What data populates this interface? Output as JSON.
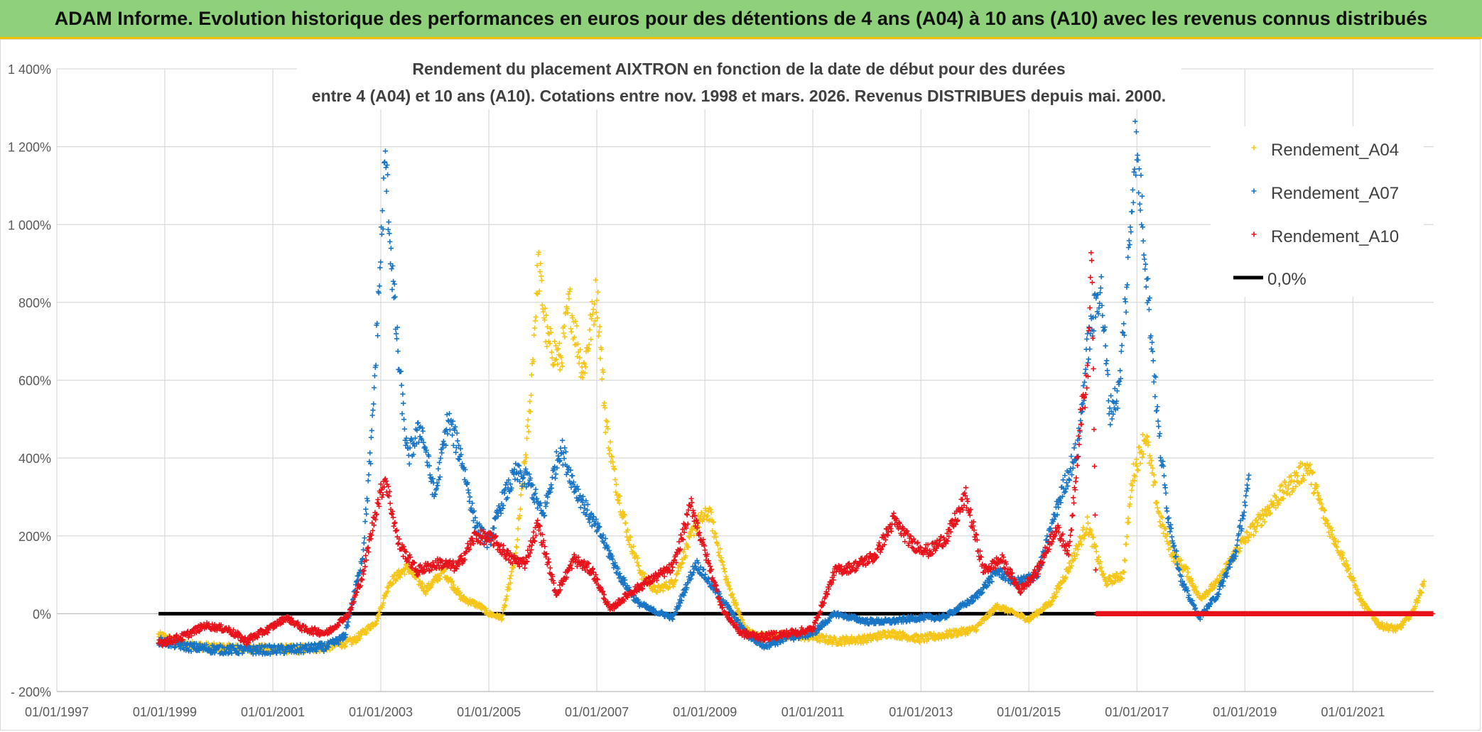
{
  "banner": {
    "title": "ADAM Informe. Evolution historique des performances en euros pour des détentions de 4 ans (A04) à 10 ans (A10) avec les revenus connus distribués"
  },
  "chart_data": {
    "type": "scatter",
    "title_line1": "Rendement du placement AIXTRON en fonction de la date de début pour des durées",
    "title_line2": "entre 4 (A04) et 10 ans (A10). Cotations entre nov. 1998 et mars. 2026. Revenus DISTRIBUES depuis mai. 2000.",
    "xlabel": "",
    "ylabel": "",
    "x_range": [
      "01/01/1997",
      "01/07/2022"
    ],
    "ylim": [
      -200,
      1400
    ],
    "y_ticks": [
      -200,
      0,
      200,
      400,
      600,
      800,
      1000,
      1200,
      1400
    ],
    "y_tick_labels": [
      "- 200%",
      "0%",
      "200%",
      "400%",
      "600%",
      "800%",
      "1 000%",
      "1 200%",
      "1 400%"
    ],
    "x_ticks": [
      "01/01/1997",
      "01/01/1999",
      "01/01/2001",
      "01/01/2003",
      "01/01/2005",
      "01/01/2007",
      "01/01/2009",
      "01/01/2011",
      "01/01/2013",
      "01/01/2015",
      "01/01/2017",
      "01/01/2019",
      "01/01/2021"
    ],
    "grid": true,
    "legend_position": "top-right",
    "series": [
      {
        "name": "Rendement_A04",
        "color": "#f5c518",
        "marker": "plus",
        "points": [
          [
            "1998-11-20",
            -55
          ],
          [
            "1999-06-01",
            -80
          ],
          [
            "2000-01-01",
            -88
          ],
          [
            "2000-09-01",
            -90
          ],
          [
            "2001-06-01",
            -92
          ],
          [
            "2002-01-01",
            -85
          ],
          [
            "2002-07-01",
            -70
          ],
          [
            "2002-12-01",
            -20
          ],
          [
            "2003-03-01",
            80
          ],
          [
            "2003-07-01",
            120
          ],
          [
            "2003-11-01",
            60
          ],
          [
            "2004-03-01",
            110
          ],
          [
            "2004-07-01",
            40
          ],
          [
            "2004-11-01",
            20
          ],
          [
            "2005-01-01",
            0
          ],
          [
            "2005-04-01",
            -10
          ],
          [
            "2005-07-01",
            150
          ],
          [
            "2005-10-01",
            500
          ],
          [
            "2005-12-01",
            900
          ],
          [
            "2006-02-01",
            700
          ],
          [
            "2006-05-01",
            650
          ],
          [
            "2006-07-01",
            800
          ],
          [
            "2006-10-01",
            620
          ],
          [
            "2007-01-01",
            830
          ],
          [
            "2007-03-01",
            500
          ],
          [
            "2007-05-01",
            350
          ],
          [
            "2007-08-01",
            200
          ],
          [
            "2007-11-01",
            100
          ],
          [
            "2008-02-01",
            60
          ],
          [
            "2008-06-01",
            80
          ],
          [
            "2008-11-01",
            230
          ],
          [
            "2009-02-01",
            260
          ],
          [
            "2009-06-01",
            80
          ],
          [
            "2009-10-01",
            -40
          ],
          [
            "2010-01-01",
            -60
          ],
          [
            "2010-06-01",
            -55
          ],
          [
            "2011-01-01",
            -60
          ],
          [
            "2011-06-01",
            -70
          ],
          [
            "2012-01-01",
            -65
          ],
          [
            "2012-06-01",
            -50
          ],
          [
            "2013-01-01",
            -65
          ],
          [
            "2013-06-01",
            -55
          ],
          [
            "2014-01-01",
            -40
          ],
          [
            "2014-06-01",
            20
          ],
          [
            "2015-01-01",
            -15
          ],
          [
            "2015-06-01",
            30
          ],
          [
            "2015-10-01",
            120
          ],
          [
            "2016-02-01",
            230
          ],
          [
            "2016-06-01",
            80
          ],
          [
            "2016-10-01",
            100
          ],
          [
            "2016-12-01",
            350
          ],
          [
            "2017-03-01",
            460
          ],
          [
            "2017-06-01",
            250
          ],
          [
            "2017-09-01",
            150
          ],
          [
            "2017-12-01",
            110
          ],
          [
            "2018-03-01",
            40
          ],
          [
            "2018-07-01",
            80
          ],
          [
            "2018-11-01",
            160
          ],
          [
            "2019-03-01",
            220
          ],
          [
            "2019-07-01",
            280
          ],
          [
            "2019-11-01",
            330
          ],
          [
            "2020-03-01",
            380
          ],
          [
            "2020-07-01",
            240
          ],
          [
            "2020-11-01",
            140
          ],
          [
            "2021-03-01",
            30
          ],
          [
            "2021-07-01",
            -30
          ],
          [
            "2021-11-01",
            -40
          ],
          [
            "2022-02-01",
            0
          ],
          [
            "2022-05-01",
            80
          ]
        ]
      },
      {
        "name": "Rendement_A07",
        "color": "#1874c4",
        "marker": "plus",
        "points": [
          [
            "1998-11-20",
            -70
          ],
          [
            "1999-06-01",
            -85
          ],
          [
            "2000-01-01",
            -92
          ],
          [
            "2000-09-01",
            -93
          ],
          [
            "2001-06-01",
            -92
          ],
          [
            "2002-01-01",
            -85
          ],
          [
            "2002-05-01",
            -60
          ],
          [
            "2002-09-01",
            150
          ],
          [
            "2002-11-01",
            450
          ],
          [
            "2003-02-01",
            1170
          ],
          [
            "2003-03-15",
            900
          ],
          [
            "2003-05-01",
            650
          ],
          [
            "2003-07-01",
            400
          ],
          [
            "2003-10-01",
            480
          ],
          [
            "2004-01-01",
            300
          ],
          [
            "2004-04-01",
            500
          ],
          [
            "2004-07-01",
            400
          ],
          [
            "2004-10-01",
            230
          ],
          [
            "2005-01-01",
            180
          ],
          [
            "2005-04-01",
            290
          ],
          [
            "2005-07-01",
            360
          ],
          [
            "2005-10-01",
            340
          ],
          [
            "2006-01-01",
            250
          ],
          [
            "2006-05-01",
            430
          ],
          [
            "2006-08-01",
            330
          ],
          [
            "2006-11-01",
            260
          ],
          [
            "2007-02-01",
            200
          ],
          [
            "2007-06-01",
            100
          ],
          [
            "2007-10-01",
            30
          ],
          [
            "2008-01-01",
            10
          ],
          [
            "2008-06-01",
            -10
          ],
          [
            "2008-11-01",
            130
          ],
          [
            "2009-02-01",
            80
          ],
          [
            "2009-06-01",
            20
          ],
          [
            "2009-10-01",
            -50
          ],
          [
            "2010-02-01",
            -80
          ],
          [
            "2010-08-01",
            -60
          ],
          [
            "2011-01-01",
            -50
          ],
          [
            "2011-06-01",
            0
          ],
          [
            "2012-01-01",
            -20
          ],
          [
            "2012-06-01",
            -20
          ],
          [
            "2013-01-01",
            -10
          ],
          [
            "2013-06-01",
            -10
          ],
          [
            "2014-01-01",
            40
          ],
          [
            "2014-06-01",
            110
          ],
          [
            "2014-10-01",
            80
          ],
          [
            "2015-03-01",
            100
          ],
          [
            "2015-08-01",
            300
          ],
          [
            "2015-12-01",
            430
          ],
          [
            "2016-02-01",
            680
          ],
          [
            "2016-05-01",
            850
          ],
          [
            "2016-07-01",
            520
          ],
          [
            "2016-09-01",
            570
          ],
          [
            "2016-11-01",
            880
          ],
          [
            "2016-12-20",
            1210
          ],
          [
            "2017-02-01",
            1050
          ],
          [
            "2017-04-01",
            750
          ],
          [
            "2017-06-01",
            450
          ],
          [
            "2017-08-01",
            250
          ],
          [
            "2017-11-01",
            80
          ],
          [
            "2018-03-01",
            -10
          ],
          [
            "2018-07-01",
            50
          ],
          [
            "2018-11-01",
            160
          ],
          [
            "2019-02-01",
            340
          ]
        ]
      },
      {
        "name": "Rendement_A10",
        "color": "#e8121a",
        "marker": "plus",
        "points": [
          [
            "1998-11-20",
            -75
          ],
          [
            "1999-05-01",
            -60
          ],
          [
            "1999-10-01",
            -30
          ],
          [
            "2000-03-01",
            -40
          ],
          [
            "2000-07-01",
            -70
          ],
          [
            "2000-12-01",
            -40
          ],
          [
            "2001-04-01",
            -10
          ],
          [
            "2001-08-01",
            -40
          ],
          [
            "2002-01-01",
            -50
          ],
          [
            "2002-06-01",
            0
          ],
          [
            "2002-09-01",
            100
          ],
          [
            "2002-12-01",
            270
          ],
          [
            "2003-02-01",
            350
          ],
          [
            "2003-05-01",
            180
          ],
          [
            "2003-09-01",
            110
          ],
          [
            "2004-02-01",
            130
          ],
          [
            "2004-06-01",
            120
          ],
          [
            "2004-10-01",
            200
          ],
          [
            "2005-02-01",
            190
          ],
          [
            "2005-06-01",
            140
          ],
          [
            "2005-09-01",
            130
          ],
          [
            "2005-12-01",
            230
          ],
          [
            "2006-04-01",
            50
          ],
          [
            "2006-08-01",
            140
          ],
          [
            "2006-12-01",
            110
          ],
          [
            "2007-04-01",
            10
          ],
          [
            "2007-08-01",
            50
          ],
          [
            "2007-12-01",
            80
          ],
          [
            "2008-06-01",
            120
          ],
          [
            "2008-10-01",
            280
          ],
          [
            "2009-01-01",
            160
          ],
          [
            "2009-05-01",
            10
          ],
          [
            "2009-09-01",
            -50
          ],
          [
            "2010-02-01",
            -60
          ],
          [
            "2010-08-01",
            -50
          ],
          [
            "2011-01-01",
            -40
          ],
          [
            "2011-06-01",
            110
          ],
          [
            "2011-10-01",
            120
          ],
          [
            "2012-03-01",
            150
          ],
          [
            "2012-07-01",
            240
          ],
          [
            "2012-11-01",
            180
          ],
          [
            "2013-03-01",
            160
          ],
          [
            "2013-07-01",
            200
          ],
          [
            "2013-11-01",
            300
          ],
          [
            "2014-03-01",
            110
          ],
          [
            "2014-07-01",
            140
          ],
          [
            "2014-11-01",
            60
          ],
          [
            "2015-03-01",
            110
          ],
          [
            "2015-07-01",
            220
          ],
          [
            "2015-10-01",
            160
          ],
          [
            "2015-12-15",
            500
          ],
          [
            "2016-02-01",
            600
          ],
          [
            "2016-03-01",
            950
          ],
          [
            "2016-04-01",
            0
          ],
          [
            "2022-07-01",
            0
          ]
        ]
      }
    ],
    "reference_line": {
      "name": "0,0%",
      "value": 0,
      "from": "1998-11-20",
      "to": "2016-03-31",
      "color": "#000000"
    }
  }
}
